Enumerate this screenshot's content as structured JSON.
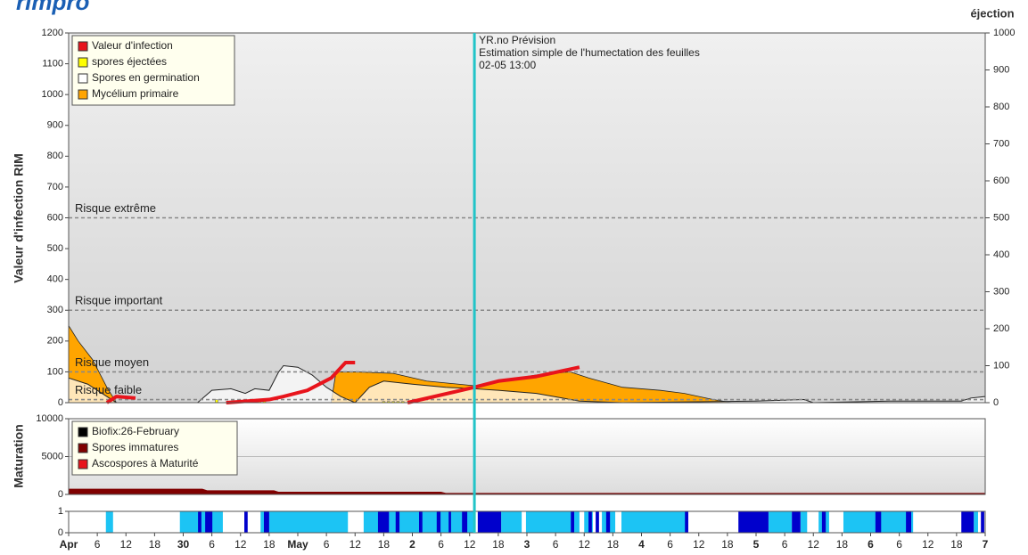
{
  "logo": "rimpro",
  "chart_data": [
    {
      "type": "area",
      "y_label": "Valeur d'infection RIM",
      "y2_label": "éjection",
      "xlim": [
        0,
        192
      ],
      "ylim": [
        0,
        1200
      ],
      "yticks": [
        0,
        100,
        200,
        300,
        400,
        500,
        600,
        700,
        800,
        900,
        1000,
        1100,
        1200
      ],
      "y2lim": [
        0,
        1000
      ],
      "y2ticks": [
        0,
        100,
        200,
        300,
        400,
        500,
        600,
        700,
        800,
        900,
        1000
      ],
      "legend": "top-left",
      "series": [
        {
          "name": "Valeur d'infection",
          "color": "#e8141c",
          "kind": "line",
          "x": [
            8,
            10,
            14,
            20,
            33,
            42,
            45,
            50,
            55,
            58,
            60,
            65,
            71,
            85,
            90,
            98,
            107
          ],
          "values": [
            0,
            20,
            15,
            null,
            0,
            10,
            20,
            40,
            80,
            130,
            130,
            null,
            0,
            50,
            70,
            85,
            115
          ]
        },
        {
          "name": "spores éjectées",
          "color": "#ffff00",
          "kind": "bar",
          "axis": "y2",
          "x": [
            31,
            40,
            41,
            66,
            67,
            68,
            69,
            70
          ],
          "values": [
            8,
            5,
            5,
            3,
            3,
            3,
            3,
            3
          ]
        },
        {
          "name": "Spores en germination",
          "color": "#ffffff",
          "kind": "area",
          "x": [
            0,
            4,
            8,
            10,
            27,
            30,
            34,
            37,
            39,
            42,
            44,
            45,
            48,
            51,
            54,
            57,
            60,
            63,
            66,
            72,
            79,
            85,
            90,
            98,
            107,
            116,
            144,
            154,
            156,
            172,
            187,
            189,
            192
          ],
          "values": [
            80,
            60,
            20,
            0,
            0,
            40,
            45,
            30,
            45,
            40,
            100,
            120,
            115,
            90,
            50,
            20,
            0,
            50,
            70,
            60,
            50,
            45,
            40,
            30,
            5,
            0,
            5,
            10,
            0,
            5,
            5,
            15,
            20
          ]
        },
        {
          "name": "Mycélium primaire",
          "color": "#ffa500",
          "kind": "area",
          "x": [
            0,
            2,
            5,
            8,
            10,
            55,
            56,
            60,
            68,
            75,
            85,
            90,
            98,
            105,
            109,
            116,
            124,
            129,
            135,
            139,
            192
          ],
          "values": [
            250,
            200,
            140,
            50,
            0,
            0,
            100,
            100,
            95,
            70,
            55,
            70,
            90,
            100,
            80,
            50,
            40,
            30,
            10,
            0,
            0
          ]
        }
      ],
      "risk_levels": [
        {
          "label": "Risque extrême",
          "value": 600
        },
        {
          "label": "Risque important",
          "value": 300
        },
        {
          "label": "Risque moyen",
          "value": 100
        },
        {
          "label": "Risque faible",
          "value": 10
        }
      ],
      "forecast": {
        "x": 85,
        "lines": [
          "YR.no Prévision",
          "Estimation simple de l'humectation des feuilles",
          "02-05 13:00"
        ]
      }
    },
    {
      "type": "area",
      "y_label": "Maturation",
      "xlim": [
        0,
        192
      ],
      "ylim": [
        0,
        10000
      ],
      "yticks": [
        0,
        5000,
        10000
      ],
      "grid": true,
      "legend": "top-left",
      "series": [
        {
          "name": "Biofix:26-February",
          "color": "#000000"
        },
        {
          "name": "Spores immatures",
          "color": "#800000",
          "x": [
            0,
            28,
            29,
            43,
            44,
            78,
            79,
            192
          ],
          "values": [
            700,
            700,
            500,
            500,
            300,
            300,
            150,
            150
          ]
        },
        {
          "name": "Ascospores à Maturité",
          "color": "#e8141c",
          "x": [
            0,
            192
          ],
          "values": [
            0,
            0
          ]
        }
      ]
    },
    {
      "type": "timeline",
      "xlim": [
        0,
        192
      ],
      "ylim": [
        0,
        1
      ],
      "yticks": [
        0,
        1
      ],
      "xticks": [
        {
          "value": 0,
          "label": "Apr"
        },
        6,
        12,
        18,
        {
          "value": 24,
          "label": "30"
        },
        {
          "value": 30,
          "label": "6"
        },
        {
          "value": 36,
          "label": "12"
        },
        {
          "value": 42,
          "label": "18"
        },
        {
          "value": 48,
          "label": "May"
        },
        {
          "value": 54,
          "label": "6"
        },
        {
          "value": 60,
          "label": "12"
        },
        {
          "value": 66,
          "label": "18"
        },
        {
          "value": 72,
          "label": "2"
        },
        {
          "value": 78,
          "label": "6"
        },
        {
          "value": 84,
          "label": "12"
        },
        {
          "value": 90,
          "label": "18"
        },
        {
          "value": 96,
          "label": "3"
        },
        {
          "value": 102,
          "label": "6"
        },
        {
          "value": 108,
          "label": "12"
        },
        {
          "value": 114,
          "label": "18"
        },
        {
          "value": 120,
          "label": "4"
        },
        {
          "value": 126,
          "label": "6"
        },
        {
          "value": 132,
          "label": "12"
        },
        {
          "value": 138,
          "label": "18"
        },
        {
          "value": 144,
          "label": "5"
        },
        {
          "value": 150,
          "label": "6"
        },
        {
          "value": 156,
          "label": "12"
        },
        {
          "value": 162,
          "label": "18"
        },
        {
          "value": 168,
          "label": "6"
        },
        {
          "value": 174,
          "label": "6"
        },
        {
          "value": 180,
          "label": "12"
        },
        {
          "value": 186,
          "label": "18"
        },
        {
          "value": 192,
          "label": "7"
        }
      ],
      "bands": [
        {
          "color": "#1cc4f4",
          "intervals": [
            [
              7.8,
              9.3
            ],
            [
              23.3,
              32.3
            ],
            [
              40.2,
              58.5
            ],
            [
              61.8,
              85.0
            ],
            [
              90.6,
              94.9
            ],
            [
              95.8,
              107.0
            ],
            [
              108.0,
              109.8
            ],
            [
              111.7,
              114.5
            ],
            [
              115.8,
              129.4
            ],
            [
              146.6,
              151.5
            ],
            [
              153.3,
              154.7
            ],
            [
              157.1,
              159.3
            ],
            [
              162.3,
              176.9
            ],
            [
              189.6,
              190.5
            ]
          ]
        },
        {
          "color": "#0000cc",
          "intervals": [
            [
              27.1,
              27.8
            ],
            [
              28.6,
              30.1
            ],
            [
              36.8,
              37.5
            ],
            [
              40.9,
              42.0
            ],
            [
              64.8,
              67.1
            ],
            [
              68.5,
              69.3
            ],
            [
              73.4,
              74.1
            ],
            [
              77.1,
              77.9
            ],
            [
              79.6,
              80.1
            ],
            [
              82.4,
              83.5
            ],
            [
              85.7,
              90.6
            ],
            [
              105.2,
              105.9
            ],
            [
              108.9,
              109.6
            ],
            [
              110.4,
              111.1
            ],
            [
              112.6,
              113.4
            ],
            [
              129.1,
              129.8
            ],
            [
              140.3,
              146.6
            ],
            [
              151.5,
              153.3
            ],
            [
              157.8,
              158.6
            ],
            [
              169.0,
              170.2
            ],
            [
              175.4,
              176.5
            ],
            [
              187.0,
              189.6
            ],
            [
              191.1,
              191.8
            ]
          ]
        }
      ]
    }
  ]
}
